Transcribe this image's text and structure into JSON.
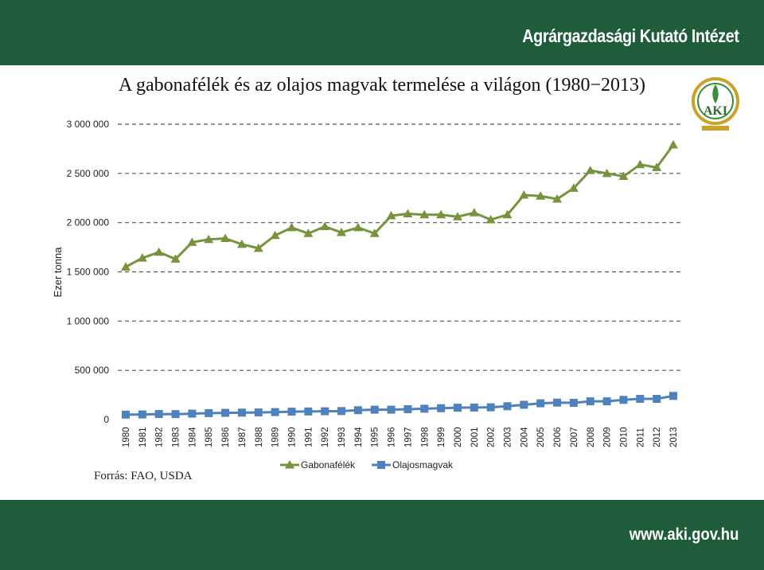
{
  "header": {
    "org_name": "Agrárgazdasági Kutató Intézet"
  },
  "footer": {
    "website": "www.aki.gov.hu"
  },
  "source": "Forrás: FAO, USDA",
  "logo": {
    "text": "AKI"
  },
  "colors": {
    "band": "#1e5c3a",
    "gabona": "#77933c",
    "olaj": "#4f81bd",
    "grid": "#555555"
  },
  "chart_data": {
    "type": "line",
    "title": "A gabonafélék és az olajos magvak termelése a világon (1980−2013)",
    "xlabel": "",
    "ylabel": "Ezer tonna",
    "ylim": [
      0,
      3000000
    ],
    "yticks": [
      0,
      500000,
      1000000,
      1500000,
      2000000,
      2500000,
      3000000
    ],
    "ytick_labels": [
      "0",
      "500 000",
      "1 000 000",
      "1 500 000",
      "2 000 000",
      "2 500 000",
      "3 000 000"
    ],
    "grid": true,
    "legend": "bottom",
    "categories": [
      "1980",
      "1981",
      "1982",
      "1983",
      "1984",
      "1985",
      "1986",
      "1987",
      "1988",
      "1989",
      "1990",
      "1991",
      "1992",
      "1993",
      "1994",
      "1995",
      "1996",
      "1997",
      "1998",
      "1999",
      "2000",
      "2001",
      "2002",
      "2003",
      "2004",
      "2005",
      "2006",
      "2007",
      "2008",
      "2009",
      "2010",
      "2011",
      "2012",
      "2013"
    ],
    "series": [
      {
        "name": "Gabonafélék",
        "marker": "triangle",
        "values": [
          1550000,
          1640000,
          1700000,
          1630000,
          1800000,
          1830000,
          1840000,
          1780000,
          1740000,
          1870000,
          1950000,
          1890000,
          1960000,
          1900000,
          1950000,
          1890000,
          2070000,
          2090000,
          2080000,
          2080000,
          2060000,
          2100000,
          2030000,
          2080000,
          2280000,
          2270000,
          2240000,
          2350000,
          2530000,
          2500000,
          2470000,
          2590000,
          2560000,
          2790000
        ]
      },
      {
        "name": "Olajosmagvak",
        "marker": "square",
        "values": [
          50000,
          52000,
          56000,
          55000,
          60000,
          65000,
          68000,
          70000,
          72000,
          76000,
          80000,
          82000,
          84000,
          86000,
          95000,
          100000,
          100000,
          105000,
          110000,
          115000,
          120000,
          122000,
          124000,
          135000,
          150000,
          165000,
          172000,
          170000,
          185000,
          185000,
          200000,
          210000,
          210000,
          240000
        ]
      }
    ]
  }
}
